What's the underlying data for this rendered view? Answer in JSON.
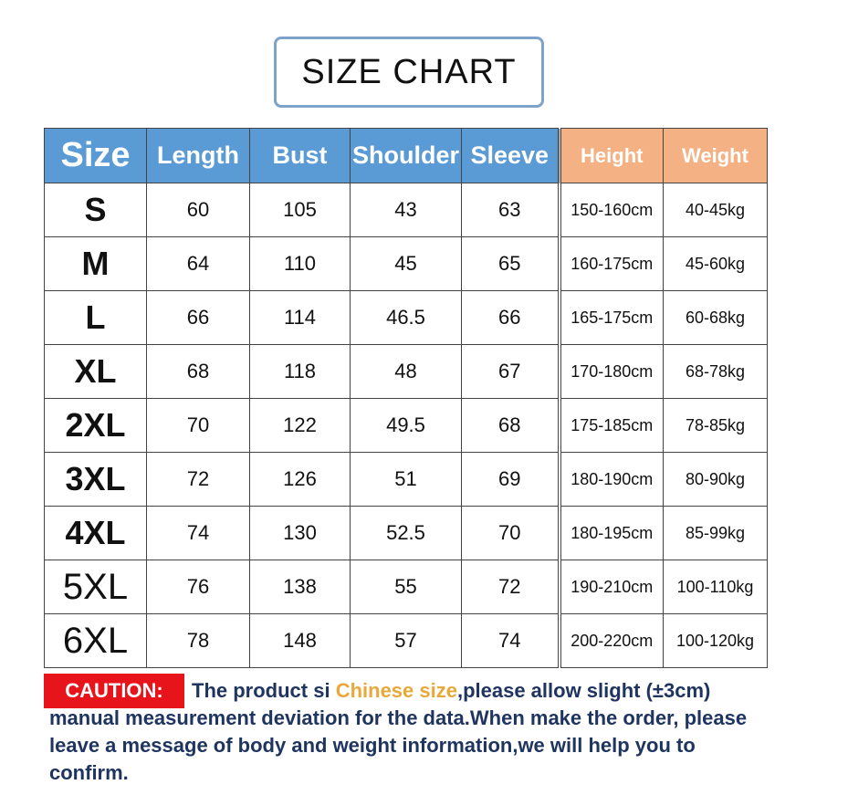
{
  "title": "SIZE CHART",
  "table": {
    "headers": [
      "Size",
      "Length",
      "Bust",
      "Shoulder",
      "Sleeve",
      "Height",
      "Weight"
    ],
    "header_colors": {
      "measurement": "#5b9bd5",
      "body": "#f4b183"
    },
    "rows": [
      [
        "S",
        "60",
        "105",
        "43",
        "63",
        "150-160cm",
        "40-45kg"
      ],
      [
        "M",
        "64",
        "110",
        "45",
        "65",
        "160-175cm",
        "45-60kg"
      ],
      [
        "L",
        "66",
        "114",
        "46.5",
        "66",
        "165-175cm",
        "60-68kg"
      ],
      [
        "XL",
        "68",
        "118",
        "48",
        "67",
        "170-180cm",
        "68-78kg"
      ],
      [
        "2XL",
        "70",
        "122",
        "49.5",
        "68",
        "175-185cm",
        "78-85kg"
      ],
      [
        "3XL",
        "72",
        "126",
        "51",
        "69",
        "180-190cm",
        "80-90kg"
      ],
      [
        "4XL",
        "74",
        "130",
        "52.5",
        "70",
        "180-195cm",
        "85-99kg"
      ],
      [
        "5XL",
        "76",
        "138",
        "55",
        "72",
        "190-210cm",
        "100-110kg"
      ],
      [
        "6XL",
        "78",
        "148",
        "57",
        "74",
        "200-220cm",
        "100-120kg"
      ]
    ]
  },
  "caution": {
    "label": "CAUTION:",
    "text_before": "The product si ",
    "highlight": "Chinese size",
    "text_after": ",please allow slight (±3cm) manual measurement deviation for the data.When make the order, please leave a message of body and weight information,we will help you to confirm.",
    "label_color": "#e8141b",
    "highlight_color": "#e8a93a"
  }
}
